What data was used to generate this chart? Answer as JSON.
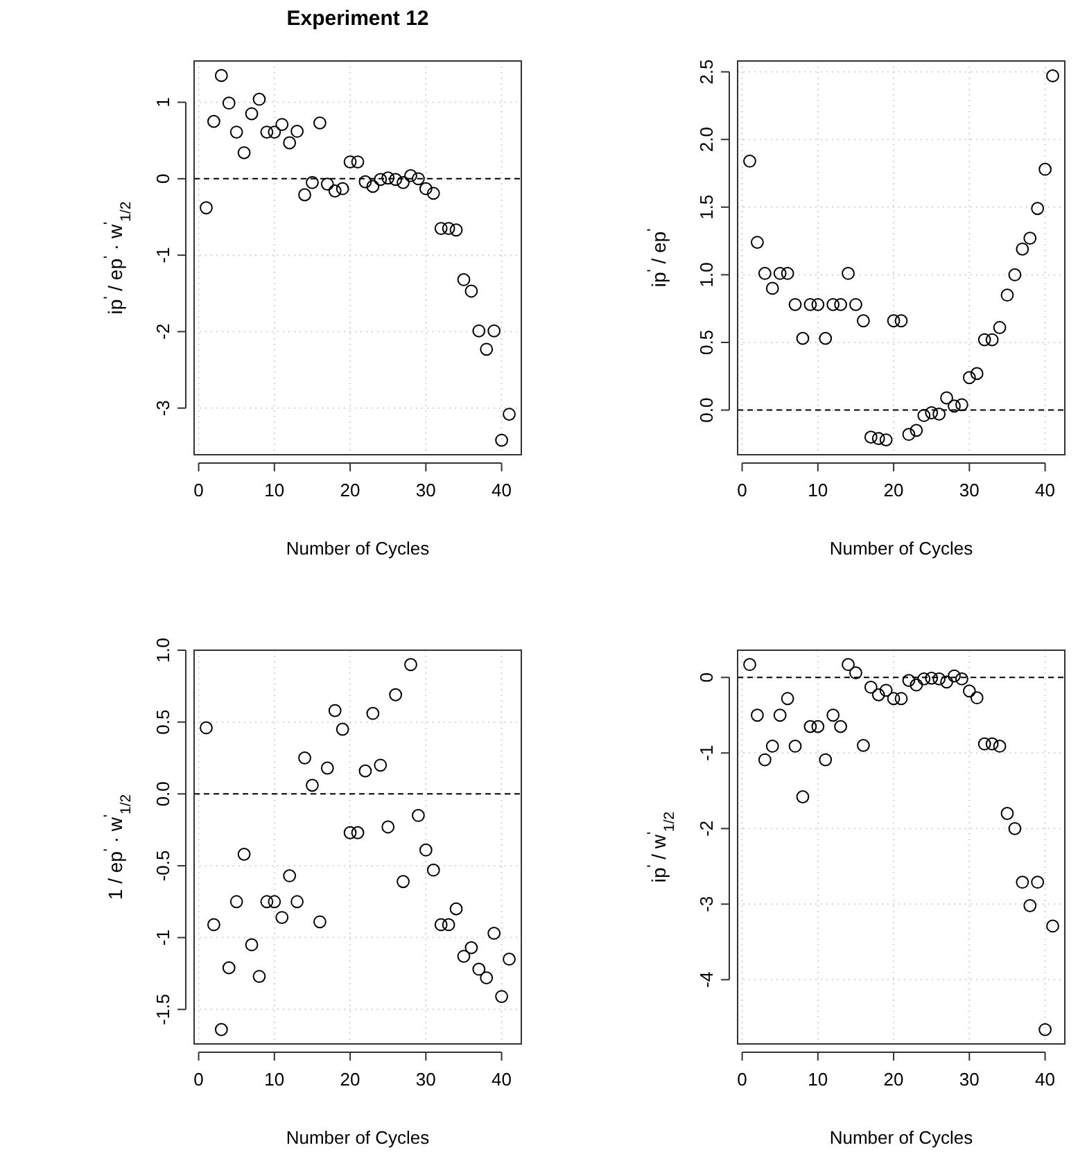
{
  "chart_data": [
    {
      "type": "scatter",
      "title": "Experiment 12",
      "xlabel": "Number of Cycles",
      "ylabel": "ip$^{'}$ / ep$^{'}$ · w$^{'}$$_{1/2}$",
      "marker": "circle",
      "grid": true,
      "x": [
        1,
        2,
        3,
        4,
        5,
        6,
        7,
        8,
        9,
        10,
        11,
        12,
        13,
        14,
        15,
        16,
        17,
        18,
        19,
        20,
        21,
        22,
        23,
        24,
        25,
        26,
        27,
        28,
        29,
        30,
        31,
        32,
        33,
        34,
        35,
        36,
        37,
        38,
        39,
        40,
        41
      ],
      "series": [
        {
          "color": "#000000",
          "values": [
            -0.38,
            0.75,
            1.35,
            0.99,
            0.61,
            0.34,
            0.85,
            1.04,
            0.61,
            0.61,
            0.71,
            0.47,
            0.62,
            -0.21,
            -0.05,
            0.73,
            -0.07,
            -0.16,
            -0.13,
            0.22,
            0.22,
            -0.04,
            -0.1,
            -0.01,
            0.01,
            -0.01,
            -0.05,
            0.04,
            0,
            -0.13,
            -0.19,
            -0.65,
            -0.65,
            -0.67,
            -1.32,
            -1.47,
            -1.99,
            -2.23,
            -1.99,
            -3.42,
            -3.08
          ]
        }
      ],
      "xlim": [
        -0.6,
        42.6
      ],
      "xticks": [
        0,
        10,
        20,
        30,
        40
      ],
      "ylim": [
        -3.61,
        1.54
      ],
      "yticks": [
        -3,
        -2,
        -1,
        0,
        1
      ],
      "ref_lines": [
        {
          "axis": "y",
          "value": 0,
          "line_style": "dashed"
        }
      ]
    },
    {
      "type": "scatter",
      "xlabel": "Number of Cycles",
      "ylabel": "ip$^{'}$ / ep$^{'}$",
      "marker": "circle",
      "grid": true,
      "x": [
        1,
        2,
        3,
        4,
        5,
        6,
        7,
        8,
        9,
        10,
        11,
        12,
        13,
        14,
        15,
        16,
        17,
        18,
        19,
        20,
        21,
        22,
        23,
        24,
        25,
        26,
        27,
        28,
        29,
        30,
        31,
        32,
        33,
        34,
        35,
        36,
        37,
        38,
        39,
        40,
        41
      ],
      "series": [
        {
          "color": "#000000",
          "values": [
            1.84,
            1.24,
            1.01,
            0.9,
            1.01,
            1.01,
            0.78,
            0.53,
            0.78,
            0.78,
            0.53,
            0.78,
            0.78,
            1.01,
            0.78,
            0.66,
            -0.2,
            -0.21,
            -0.22,
            0.66,
            0.66,
            -0.18,
            -0.15,
            -0.04,
            -0.02,
            -0.03,
            0.09,
            0.03,
            0.04,
            0.24,
            0.27,
            0.52,
            0.52,
            0.61,
            0.85,
            1.0,
            1.19,
            1.27,
            1.49,
            1.78,
            2.47
          ]
        }
      ],
      "xlim": [
        -0.6,
        42.6
      ],
      "xticks": [
        0,
        10,
        20,
        30,
        40
      ],
      "ylim": [
        -0.33,
        2.58
      ],
      "yticks": [
        {
          "value": 0,
          "label": "0.0"
        },
        {
          "value": 0.5,
          "label": "0.5"
        },
        {
          "value": 1,
          "label": "1.0"
        },
        {
          "value": 1.5,
          "label": "1.5"
        },
        {
          "value": 2,
          "label": "2.0"
        },
        {
          "value": 2.5,
          "label": "2.5"
        }
      ],
      "ref_lines": [
        {
          "axis": "y",
          "value": 0,
          "line_style": "dashed"
        }
      ]
    },
    {
      "type": "scatter",
      "xlabel": "Number of Cycles",
      "ylabel": "1 / ep$^{'}$ · w$^{'}$$_{1/2}$",
      "marker": "circle",
      "grid": true,
      "x": [
        1,
        2,
        3,
        4,
        5,
        6,
        7,
        8,
        9,
        10,
        11,
        12,
        13,
        14,
        15,
        16,
        17,
        18,
        19,
        20,
        21,
        22,
        23,
        24,
        25,
        26,
        27,
        28,
        29,
        30,
        31,
        32,
        33,
        34,
        35,
        36,
        37,
        38,
        39,
        40,
        41
      ],
      "series": [
        {
          "color": "#000000",
          "values": [
            0.46,
            -0.91,
            -1.64,
            -1.21,
            -0.75,
            -0.42,
            -1.05,
            -1.27,
            -0.75,
            -0.75,
            -0.86,
            -0.57,
            -0.75,
            0.25,
            0.06,
            -0.89,
            0.18,
            0.58,
            0.45,
            -0.27,
            -0.27,
            0.16,
            0.56,
            0.2,
            -0.23,
            0.69,
            -0.61,
            0.9,
            -0.15,
            -0.39,
            -0.53,
            -0.91,
            -0.91,
            -0.8,
            -1.13,
            -1.07,
            -1.22,
            -1.28,
            -0.97,
            -1.41,
            -1.15
          ]
        }
      ],
      "xlim": [
        -0.6,
        42.6
      ],
      "xticks": [
        0,
        10,
        20,
        30,
        40
      ],
      "ylim": [
        -1.74,
        1.0
      ],
      "yticks": [
        -1.5,
        -1,
        {
          "value": -0.5,
          "label": "-0.5"
        },
        {
          "value": 0,
          "label": "0.0"
        },
        0.5,
        {
          "value": 1,
          "label": "1.0"
        }
      ],
      "ref_lines": [
        {
          "axis": "y",
          "value": 0,
          "line_style": "dashed"
        }
      ]
    },
    {
      "type": "scatter",
      "xlabel": "Number of Cycles",
      "ylabel": "ip$^{'}$ / w$^{'}$$_{1/2}$",
      "marker": "circle",
      "grid": true,
      "x": [
        1,
        2,
        3,
        4,
        5,
        6,
        7,
        8,
        9,
        10,
        11,
        12,
        13,
        14,
        15,
        16,
        17,
        18,
        19,
        20,
        21,
        22,
        23,
        24,
        25,
        26,
        27,
        28,
        29,
        30,
        31,
        32,
        33,
        34,
        35,
        36,
        37,
        38,
        39,
        40,
        41
      ],
      "series": [
        {
          "color": "#000000",
          "values": [
            0.17,
            -0.5,
            -1.09,
            -0.91,
            -0.5,
            -0.28,
            -0.91,
            -1.58,
            -0.65,
            -0.65,
            -1.09,
            -0.5,
            -0.65,
            0.17,
            0.06,
            -0.9,
            -0.13,
            -0.23,
            -0.17,
            -0.28,
            -0.28,
            -0.04,
            -0.1,
            -0.02,
            -0.01,
            -0.02,
            -0.06,
            0.02,
            -0.02,
            -0.18,
            -0.27,
            -0.88,
            -0.88,
            -0.91,
            -1.8,
            -2.0,
            -2.71,
            -3.02,
            -2.71,
            -4.66,
            -3.29
          ]
        }
      ],
      "xlim": [
        -0.6,
        42.6
      ],
      "xticks": [
        0,
        10,
        20,
        30,
        40
      ],
      "ylim": [
        -4.85,
        0.36
      ],
      "yticks": [
        -4,
        -3,
        -2,
        -1,
        0
      ],
      "ref_lines": [
        {
          "axis": "y",
          "value": 0,
          "line_style": "dashed"
        }
      ]
    }
  ]
}
